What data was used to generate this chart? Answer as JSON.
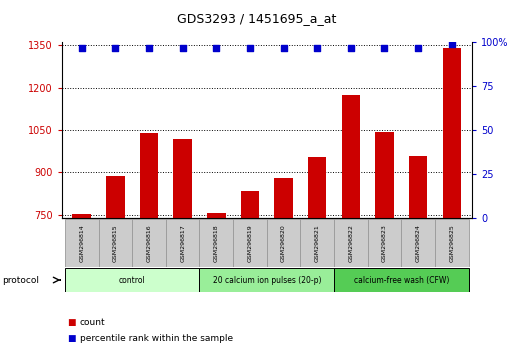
{
  "title": "GDS3293 / 1451695_a_at",
  "samples": [
    "GSM296814",
    "GSM296815",
    "GSM296816",
    "GSM296817",
    "GSM296818",
    "GSM296819",
    "GSM296820",
    "GSM296821",
    "GSM296822",
    "GSM296823",
    "GSM296824",
    "GSM296825"
  ],
  "counts": [
    752,
    888,
    1040,
    1020,
    757,
    833,
    880,
    955,
    1175,
    1045,
    960,
    1340
  ],
  "percentile_ranks": [
    97,
    97,
    97,
    97,
    97,
    97,
    97,
    97,
    97,
    97,
    97,
    99
  ],
  "bar_color": "#cc0000",
  "dot_color": "#0000cc",
  "ylim_left": [
    740,
    1360
  ],
  "yticks_left": [
    750,
    900,
    1050,
    1200,
    1350
  ],
  "ylim_right": [
    0,
    100
  ],
  "yticks_right": [
    0,
    25,
    50,
    75,
    100
  ],
  "yticklabels_right": [
    "0",
    "25",
    "50",
    "75",
    "100%"
  ],
  "protocol_groups": [
    {
      "label": "control",
      "indices": [
        0,
        1,
        2,
        3
      ],
      "color": "#ccffcc"
    },
    {
      "label": "20 calcium ion pulses (20-p)",
      "indices": [
        4,
        5,
        6,
        7
      ],
      "color": "#99ee99"
    },
    {
      "label": "calcium-free wash (CFW)",
      "indices": [
        8,
        9,
        10,
        11
      ],
      "color": "#55cc55"
    }
  ],
  "protocol_label": "protocol",
  "legend_count_label": "count",
  "legend_pct_label": "percentile rank within the sample",
  "bg_color": "#ffffff",
  "tick_label_color_left": "#cc0000",
  "tick_label_color_right": "#0000cc",
  "sample_box_color": "#cccccc",
  "sample_border_color": "#999999"
}
